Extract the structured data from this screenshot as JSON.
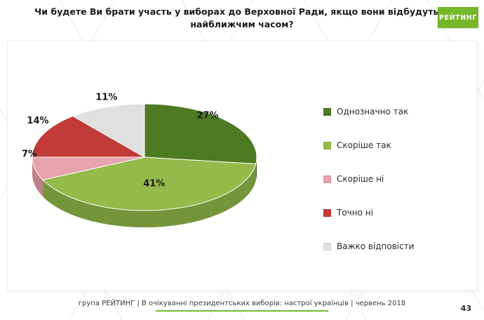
{
  "logo": {
    "text": "РЕЙТИНГ",
    "color": "#76b82a"
  },
  "chart_data": {
    "type": "pie",
    "style": "3d",
    "title": "Чи будете Ви брати участь у виборах до Верховної Ради, якщо вони відбудуться найближчим часом?",
    "unit": "%",
    "legend_position": "right",
    "slices": [
      {
        "label": "Однозначно так",
        "value": 27,
        "color": "#4d7a22",
        "shade": "#3a5b1b"
      },
      {
        "label": "Скоріше так",
        "value": 41,
        "color": "#93ba4b",
        "shade": "#74953a"
      },
      {
        "label": "Скоріше ні",
        "value": 7,
        "color": "#e5a4ad",
        "shade": "#c08089"
      },
      {
        "label": "Точно ні",
        "value": 14,
        "color": "#c13c38",
        "shade": "#8f2b29"
      },
      {
        "label": "Важко відповісти",
        "value": 11,
        "color": "#e0e0e0",
        "shade": "#b5b5b5"
      }
    ]
  },
  "footer": {
    "text": "група РЕЙТИНГ  |  В очікуванні президентських виборів: настрої українців |  червень 2018",
    "accent_color": "#76b82a",
    "page_number": "43"
  }
}
